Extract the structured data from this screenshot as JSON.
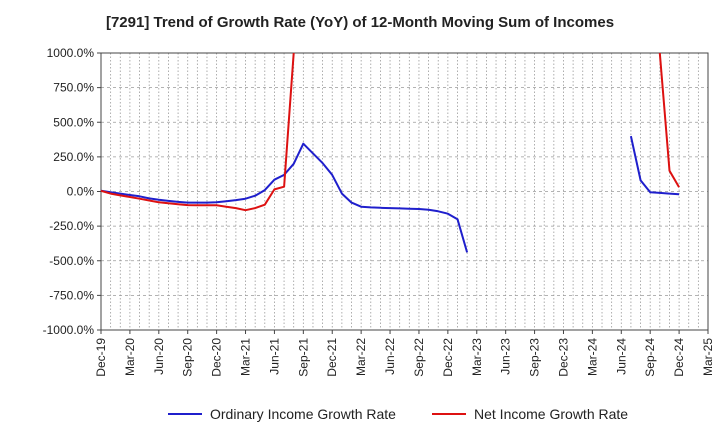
{
  "chart_data": {
    "type": "line",
    "title": "[7291]  Trend of Growth Rate (YoY) of 12-Month Moving Sum of Incomes",
    "xlabel": "",
    "ylabel": "",
    "ylim": [
      -1000,
      1000
    ],
    "y_ticks": [
      1000,
      750,
      500,
      250,
      0,
      -250,
      -500,
      -750,
      -1000
    ],
    "y_tick_labels": [
      "1000.0%",
      "750.0%",
      "500.0%",
      "250.0%",
      "0.0%",
      "-250.0%",
      "-500.0%",
      "-750.0%",
      "-1000.0%"
    ],
    "x_tick_labels": [
      "Dec-19",
      "Mar-20",
      "Jun-20",
      "Sep-20",
      "Dec-20",
      "Mar-21",
      "Jun-21",
      "Sep-21",
      "Dec-21",
      "Mar-22",
      "Jun-22",
      "Sep-22",
      "Dec-22",
      "Mar-23",
      "Jun-23",
      "Sep-23",
      "Dec-23",
      "Mar-24",
      "Jun-24",
      "Sep-24",
      "Dec-24",
      "Mar-25"
    ],
    "grid": true,
    "legend_position": "bottom",
    "series": [
      {
        "name": "Ordinary Income Growth Rate",
        "color": "#1f1fcc",
        "points": [
          [
            "Dec-19",
            5
          ],
          [
            "Jan-20",
            -5
          ],
          [
            "Feb-20",
            -15
          ],
          [
            "Mar-20",
            -25
          ],
          [
            "Apr-20",
            -35
          ],
          [
            "May-20",
            -50
          ],
          [
            "Jun-20",
            -60
          ],
          [
            "Jul-20",
            -68
          ],
          [
            "Aug-20",
            -75
          ],
          [
            "Sep-20",
            -80
          ],
          [
            "Oct-20",
            -80
          ],
          [
            "Nov-20",
            -80
          ],
          [
            "Dec-20",
            -78
          ],
          [
            "Jan-21",
            -70
          ],
          [
            "Feb-21",
            -62
          ],
          [
            "Mar-21",
            -52
          ],
          [
            "Apr-21",
            -30
          ],
          [
            "May-21",
            10
          ],
          [
            "Jun-21",
            85
          ],
          [
            "Jul-21",
            120
          ],
          [
            "Aug-21",
            200
          ],
          [
            "Sep-21",
            345
          ],
          [
            "Oct-21",
            275
          ],
          [
            "Nov-21",
            205
          ],
          [
            "Dec-21",
            120
          ],
          [
            "Jan-22",
            -15
          ],
          [
            "Feb-22",
            -80
          ],
          [
            "Mar-22",
            -110
          ],
          [
            "Apr-22",
            -115
          ],
          [
            "May-22",
            -118
          ],
          [
            "Jun-22",
            -120
          ],
          [
            "Jul-22",
            -122
          ],
          [
            "Aug-22",
            -124
          ],
          [
            "Sep-22",
            -126
          ],
          [
            "Oct-22",
            -132
          ],
          [
            "Nov-22",
            -143
          ],
          [
            "Dec-22",
            -160
          ],
          [
            "Jan-23",
            -200
          ],
          [
            "Feb-23",
            -440
          ],
          [
            "Jul-24",
            400
          ],
          [
            "Aug-24",
            80
          ],
          [
            "Sep-24",
            -5
          ],
          [
            "Oct-24",
            -10
          ],
          [
            "Nov-24",
            -15
          ],
          [
            "Dec-24",
            -20
          ]
        ]
      },
      {
        "name": "Net Income Growth Rate",
        "color": "#dd1111",
        "points": [
          [
            "Dec-19",
            5
          ],
          [
            "Jan-20",
            -15
          ],
          [
            "Feb-20",
            -28
          ],
          [
            "Mar-20",
            -40
          ],
          [
            "Apr-20",
            -52
          ],
          [
            "May-20",
            -65
          ],
          [
            "Jun-20",
            -78
          ],
          [
            "Jul-20",
            -85
          ],
          [
            "Aug-20",
            -92
          ],
          [
            "Sep-20",
            -98
          ],
          [
            "Oct-20",
            -100
          ],
          [
            "Nov-20",
            -100
          ],
          [
            "Dec-20",
            -100
          ],
          [
            "Jan-21",
            -110
          ],
          [
            "Feb-21",
            -120
          ],
          [
            "Mar-21",
            -135
          ],
          [
            "Apr-21",
            -120
          ],
          [
            "May-21",
            -95
          ],
          [
            "Jun-21",
            15
          ],
          [
            "Jul-21",
            35
          ],
          [
            "Aug-21",
            1000
          ],
          [
            "Oct-24",
            1000
          ],
          [
            "Nov-24",
            150
          ],
          [
            "Dec-24",
            30
          ]
        ]
      }
    ]
  }
}
